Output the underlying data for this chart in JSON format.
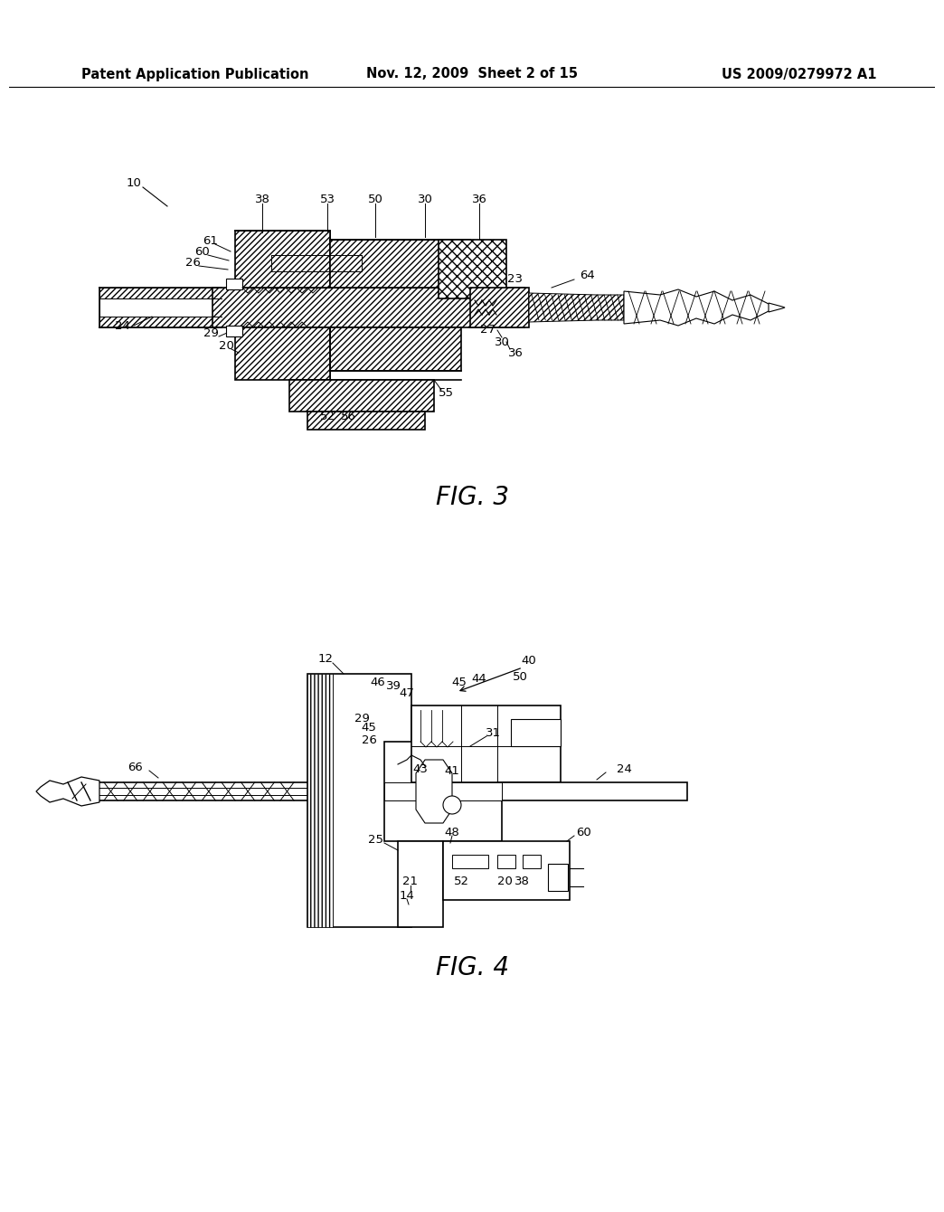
{
  "background_color": "#ffffff",
  "page_width": 10.24,
  "page_height": 13.2,
  "header": {
    "left": "Patent Application Publication",
    "center": "Nov. 12, 2009  Sheet 2 of 15",
    "right": "US 2009/0279972 A1",
    "fontsize": 10.5,
    "fontweight": "bold"
  },
  "fig3_caption": "FIG. 3",
  "fig4_caption": "FIG. 4"
}
